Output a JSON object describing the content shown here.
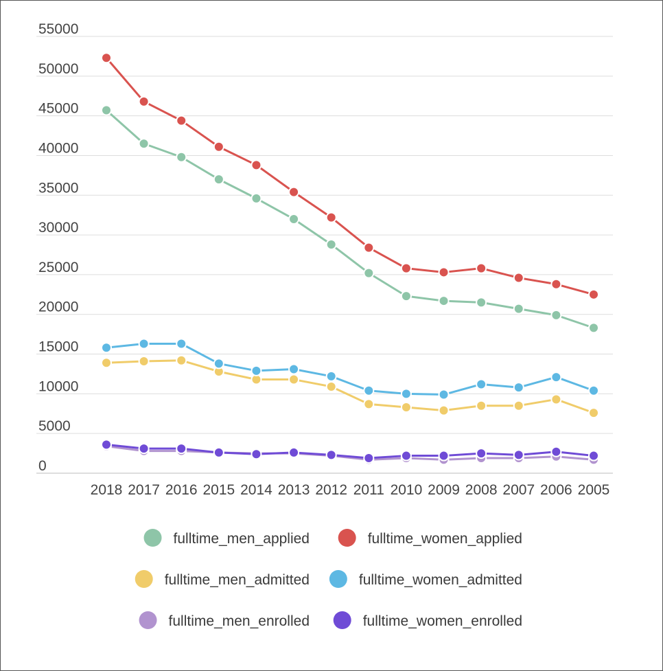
{
  "chart_data": {
    "type": "line",
    "title": "",
    "xlabel": "",
    "ylabel": "",
    "x": [
      "2018",
      "2017",
      "2016",
      "2015",
      "2014",
      "2013",
      "2012",
      "2011",
      "2010",
      "2009",
      "2008",
      "2007",
      "2006",
      "2005"
    ],
    "ylim": [
      0,
      55000
    ],
    "yticks": [
      0,
      5000,
      10000,
      15000,
      20000,
      25000,
      30000,
      35000,
      40000,
      45000,
      50000,
      55000
    ],
    "grid": true,
    "legend_position": "bottom",
    "series": [
      {
        "name": "fulltime_men_applied",
        "color": "#8ec5a8",
        "values": [
          45700,
          41500,
          39800,
          37000,
          34600,
          32000,
          28800,
          25200,
          22300,
          21700,
          21500,
          20700,
          19900,
          18300
        ]
      },
      {
        "name": "fulltime_women_applied",
        "color": "#d9534f",
        "values": [
          52300,
          46800,
          44400,
          41100,
          38800,
          35400,
          32200,
          28400,
          25800,
          25300,
          25800,
          24600,
          23800,
          22500
        ]
      },
      {
        "name": "fulltime_men_admitted",
        "color": "#f0cc6a",
        "values": [
          13900,
          14100,
          14200,
          12800,
          11800,
          11800,
          10900,
          8700,
          8300,
          7900,
          8500,
          8500,
          9300,
          7600
        ]
      },
      {
        "name": "fulltime_women_admitted",
        "color": "#5db8e3",
        "values": [
          15800,
          16300,
          16300,
          13800,
          12900,
          13100,
          12200,
          10400,
          10000,
          9900,
          11200,
          10800,
          12100,
          10400
        ]
      },
      {
        "name": "fulltime_men_enrolled",
        "color": "#b193cf",
        "values": [
          3400,
          2800,
          2800,
          2600,
          2500,
          2500,
          2200,
          1700,
          1900,
          1700,
          1900,
          1900,
          2100,
          1700
        ]
      },
      {
        "name": "fulltime_women_enrolled",
        "color": "#6f4bd6",
        "values": [
          3600,
          3100,
          3100,
          2600,
          2400,
          2600,
          2300,
          1900,
          2200,
          2200,
          2500,
          2300,
          2700,
          2200
        ]
      }
    ]
  }
}
